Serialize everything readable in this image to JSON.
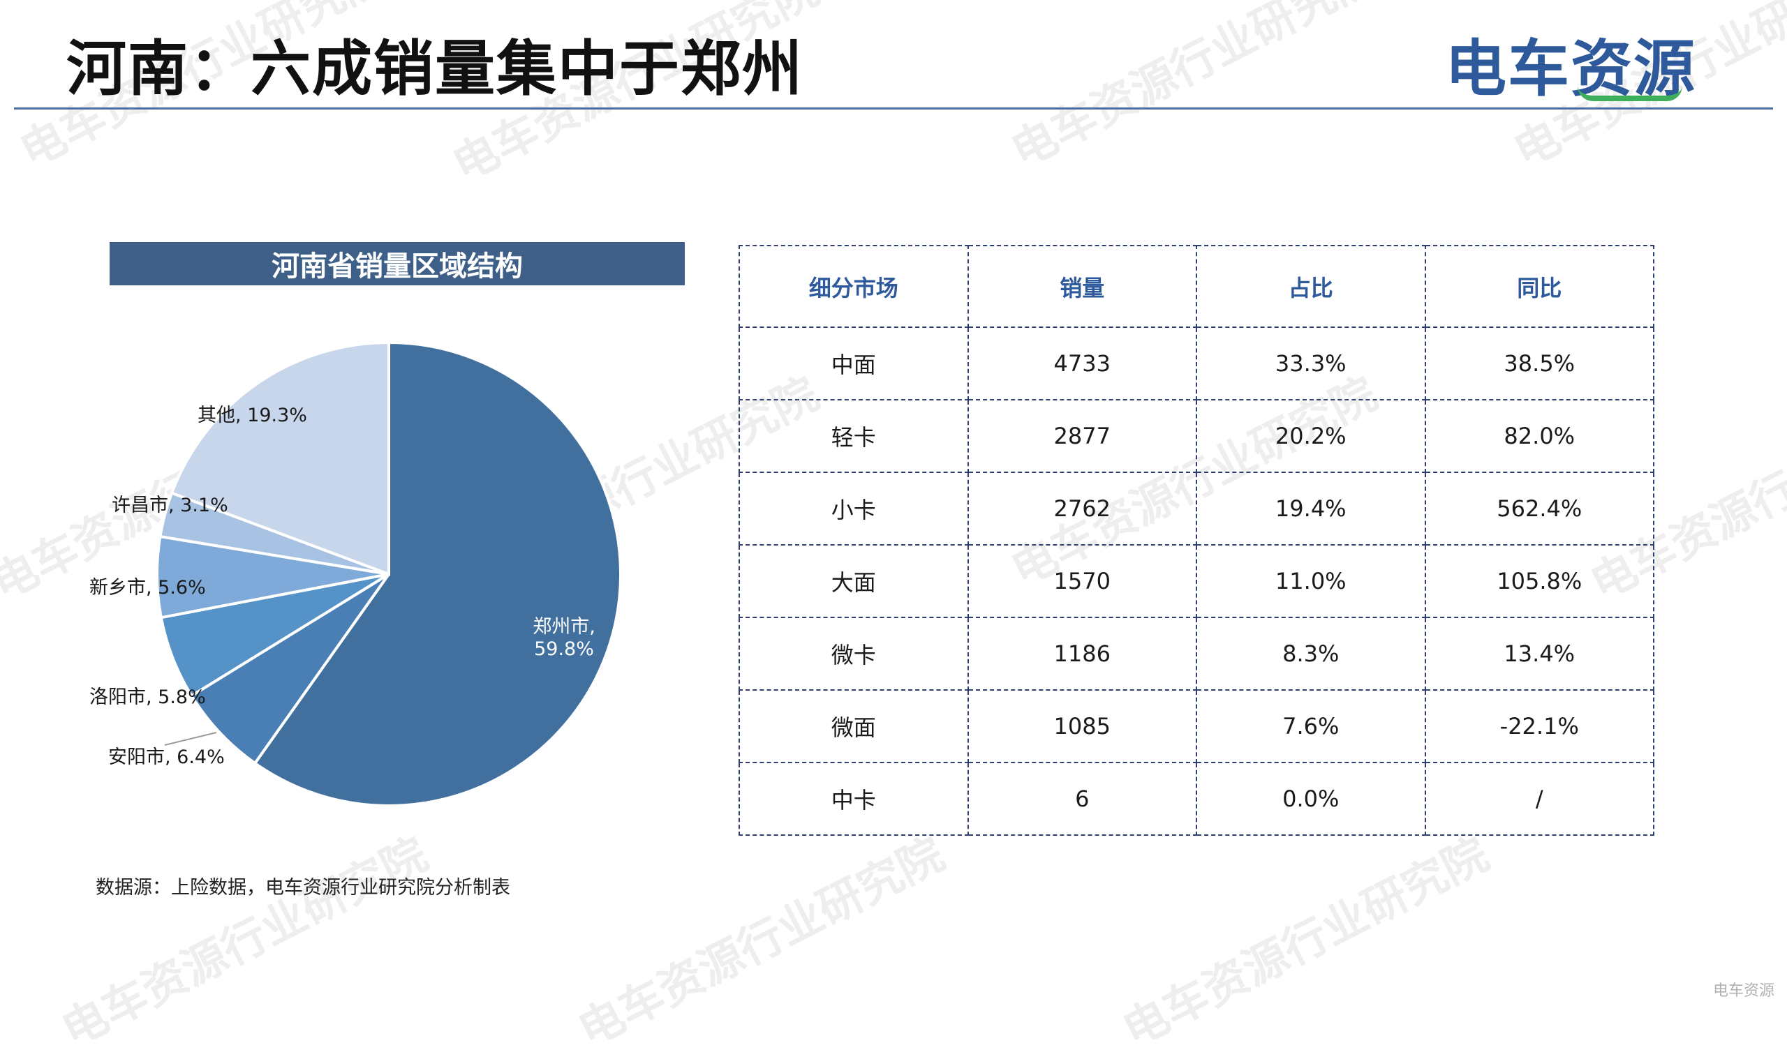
{
  "page": {
    "title": "河南：六成销量集中于郑州",
    "logo_text": "电车资源",
    "source_note": "数据源：上险数据，电车资源行业研究院分析制表",
    "watermark_text": "电车资源行业研究院",
    "corner_mark": "电车资源"
  },
  "chart_data": {
    "type": "pie",
    "title": "河南省销量区域结构",
    "slices": [
      {
        "name": "郑州市",
        "value": 59.8,
        "label": "59.8%",
        "color": "#42709e"
      },
      {
        "name": "安阳市",
        "value": 6.4,
        "label": "6.4%",
        "color": "#4a7fb5"
      },
      {
        "name": "洛阳市",
        "value": 5.8,
        "label": "5.8%",
        "color": "#5592c8"
      },
      {
        "name": "新乡市",
        "value": 5.6,
        "label": "5.6%",
        "color": "#7ea9d8"
      },
      {
        "name": "许昌市",
        "value": 3.1,
        "label": "3.1%",
        "color": "#a7c2e3"
      },
      {
        "name": "其他",
        "value": 19.3,
        "label": "19.3%",
        "color": "#c7d6eb"
      }
    ]
  },
  "table": {
    "headers": [
      "细分市场",
      "销量",
      "占比",
      "同比"
    ],
    "rows": [
      [
        "中面",
        "4733",
        "33.3%",
        "38.5%"
      ],
      [
        "轻卡",
        "2877",
        "20.2%",
        "82.0%"
      ],
      [
        "小卡",
        "2762",
        "19.4%",
        "562.4%"
      ],
      [
        "大面",
        "1570",
        "11.0%",
        "105.8%"
      ],
      [
        "微卡",
        "1186",
        "8.3%",
        "13.4%"
      ],
      [
        "微面",
        "1085",
        "7.6%",
        "-22.1%"
      ],
      [
        "中卡",
        "6",
        "0.0%",
        "/"
      ]
    ]
  }
}
